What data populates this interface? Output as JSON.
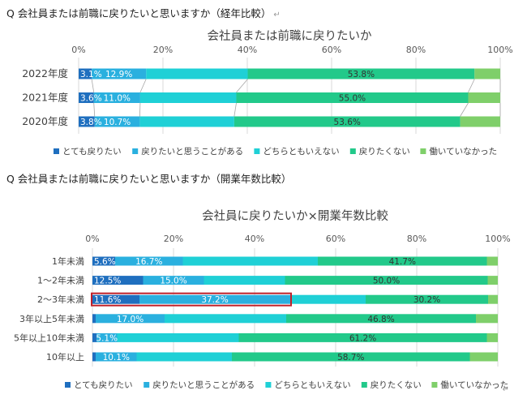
{
  "questions": {
    "q1": "Q 会社員または前職に戻りたいと思いますか（経年比較）",
    "q2": "Q 会社員または前職に戻りたいと思いますか（開業年数比較）",
    "return_mark": "↵"
  },
  "colors": {
    "とても戻りたい": "#1f6fbf",
    "戻りたいと思うことがある": "#2ab0df",
    "どちらともいえない": "#1fd0d6",
    "戻りたくない": "#22c98a",
    "働いていなかった": "#7fcf6a",
    "highlight": "#c0212a"
  },
  "chart_data": [
    {
      "type": "bar",
      "orientation": "horizontal",
      "stacked": "100%",
      "title": "会社員または前職に戻りたいか",
      "categories": [
        "2022年度",
        "2021年度",
        "2020年度"
      ],
      "xlim": [
        0,
        100
      ],
      "xticks": [
        "0%",
        "20%",
        "40%",
        "60%",
        "80%",
        "100%"
      ],
      "grid": true,
      "legend": "bottom",
      "series": [
        {
          "name": "とても戻りたい",
          "values": [
            3.1,
            3.6,
            3.8
          ],
          "labels": [
            "3.1%",
            "3.6%",
            "3.8%"
          ]
        },
        {
          "name": "戻りたいと思うことがある",
          "values": [
            12.9,
            11.0,
            10.7
          ],
          "labels": [
            "12.9%",
            "11.0%",
            "10.7%"
          ]
        },
        {
          "name": "どちらともいえない",
          "values": [
            24.1,
            22.8,
            22.4
          ],
          "labels": [
            "",
            "",
            ""
          ]
        },
        {
          "name": "戻りたくない",
          "values": [
            53.8,
            55.0,
            53.6
          ],
          "labels": [
            "53.8%",
            "55.0%",
            "53.6%"
          ]
        },
        {
          "name": "働いていなかった",
          "values": [
            6.1,
            7.6,
            9.5
          ],
          "labels": [
            "",
            "",
            ""
          ]
        }
      ]
    },
    {
      "type": "bar",
      "orientation": "horizontal",
      "stacked": "100%",
      "title": "会社員に戻りたいか×開業年数比較",
      "categories": [
        "1年未満",
        "1～2年未満",
        "2～3年未満",
        "3年以上5年未満",
        "5年以上10年未満",
        "10年以上"
      ],
      "xlim": [
        0,
        100
      ],
      "xticks": [
        "0%",
        "20%",
        "40%",
        "60%",
        "80%",
        "100%"
      ],
      "grid": true,
      "legend": "bottom",
      "highlight": {
        "category": "2～3年未満",
        "series": [
          "とても戻りたい",
          "戻りたいと思うことがある"
        ]
      },
      "series": [
        {
          "name": "とても戻りたい",
          "values": [
            5.6,
            12.5,
            11.6,
            0.8,
            1.0,
            0.8
          ],
          "labels": [
            "5.6%",
            "12.5%",
            "11.6%",
            "",
            "",
            ""
          ]
        },
        {
          "name": "戻りたいと思うことがある",
          "values": [
            16.7,
            15.0,
            37.2,
            17.0,
            5.1,
            10.1
          ],
          "labels": [
            "16.7%",
            "15.0%",
            "37.2%",
            "17.0%",
            "5.1%",
            "10.1%"
          ]
        },
        {
          "name": "どちらともいえない",
          "values": [
            33.3,
            20.0,
            18.6,
            30.0,
            30.0,
            23.5
          ],
          "labels": [
            "",
            "",
            "",
            "",
            "",
            ""
          ]
        },
        {
          "name": "戻りたくない",
          "values": [
            41.7,
            50.0,
            30.2,
            46.8,
            61.2,
            58.7
          ],
          "labels": [
            "41.7%",
            "50.0%",
            "30.2%",
            "46.8%",
            "61.2%",
            "58.7%"
          ]
        },
        {
          "name": "働いていなかった",
          "values": [
            2.7,
            2.5,
            2.4,
            5.4,
            2.7,
            6.9
          ],
          "labels": [
            "",
            "",
            "",
            "",
            "",
            ""
          ]
        }
      ]
    }
  ]
}
